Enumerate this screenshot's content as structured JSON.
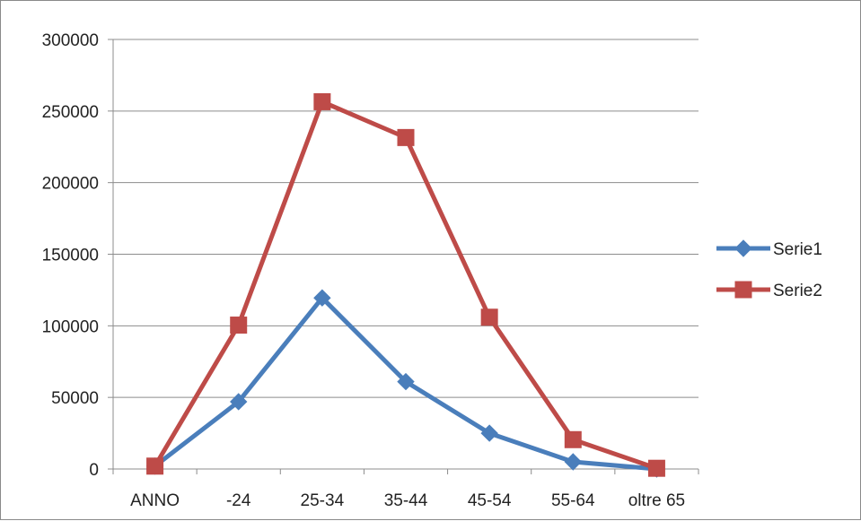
{
  "chart_data": {
    "type": "line",
    "categories": [
      "ANNO",
      "-24",
      "25-34",
      "35-44",
      "45-54",
      "55-64",
      "oltre 65"
    ],
    "series": [
      {
        "name": "Serie1",
        "values": [
          2011,
          47000,
          119500,
          61000,
          25000,
          5000,
          0
        ],
        "color": "#4a7ebb",
        "marker": "diamond"
      },
      {
        "name": "Serie2",
        "values": [
          2011,
          100500,
          256500,
          231500,
          106000,
          20500,
          500
        ],
        "color": "#be4b48",
        "marker": "square"
      }
    ],
    "ylim": [
      0,
      300000
    ],
    "yticks": [
      "0",
      "50000",
      "100000",
      "150000",
      "200000",
      "250000",
      "300000"
    ],
    "title": "",
    "xlabel": "",
    "ylabel": "",
    "grid": true,
    "legend": "right"
  }
}
